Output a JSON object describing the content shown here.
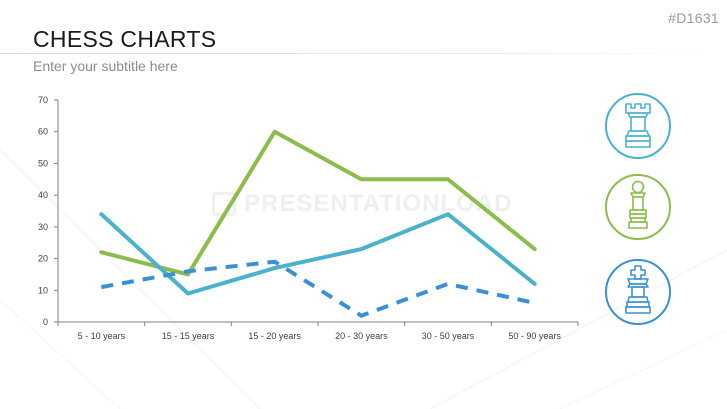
{
  "header": {
    "slide_id": "#D1631",
    "title": "CHESS CHARTS",
    "subtitle": "Enter your subtitle here"
  },
  "watermark": {
    "text": "PRESENTATIONLOAD"
  },
  "colors": {
    "green": "#8cbd4a",
    "blue": "#4ab2cc",
    "dashed_blue": "#3a90d8",
    "axis": "#808080"
  },
  "icons": [
    {
      "name": "rook-icon",
      "color": "#4ab2cc"
    },
    {
      "name": "bishop-icon",
      "color": "#8cbd4a"
    },
    {
      "name": "king-icon",
      "color": "#3a90d8"
    }
  ],
  "chart_data": {
    "type": "line",
    "categories": [
      "5 - 10 years",
      "15 - 15 years",
      "15 - 20 years",
      "20 - 30 years",
      "30 - 50 years",
      "50 - 90 years"
    ],
    "ylim": [
      0,
      70
    ],
    "yticks": [
      0,
      10,
      20,
      30,
      40,
      50,
      60,
      70
    ],
    "grid": false,
    "legend": "none",
    "series": [
      {
        "key": "green",
        "values": [
          22,
          15,
          60,
          45,
          45,
          23
        ],
        "color": "#8cbd4a",
        "dashed": false
      },
      {
        "key": "blue",
        "values": [
          34,
          9,
          17,
          23,
          34,
          12
        ],
        "color": "#4ab2cc",
        "dashed": false
      },
      {
        "key": "dashed_blue",
        "values": [
          11,
          16,
          19,
          2,
          12,
          6
        ],
        "color": "#3a90d8",
        "dashed": true
      }
    ]
  }
}
